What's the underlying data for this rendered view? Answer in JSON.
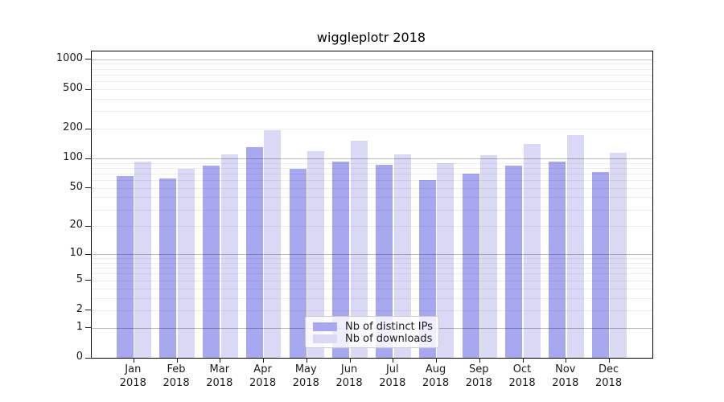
{
  "chart_data": {
    "type": "bar",
    "title": "wiggleplotr 2018",
    "xlabel": "",
    "ylabel": "",
    "y_scale": "log10(1+x)",
    "ylim": [
      0,
      1200
    ],
    "y_ticks": [
      1000,
      500,
      200,
      100,
      50,
      20,
      10,
      5,
      2,
      1,
      0
    ],
    "grid": {
      "major": [
        1,
        10,
        100,
        1000
      ],
      "minor": [
        2,
        3,
        4,
        5,
        6,
        7,
        8,
        9,
        20,
        30,
        40,
        50,
        60,
        70,
        80,
        90,
        200,
        300,
        400,
        500,
        600,
        700,
        800,
        900
      ]
    },
    "categories": [
      "Jan",
      "Feb",
      "Mar",
      "Apr",
      "May",
      "Jun",
      "Jul",
      "Aug",
      "Sep",
      "Oct",
      "Nov",
      "Dec"
    ],
    "x_tick_year_line": "2018",
    "series": [
      {
        "name": "Nb of distinct IPs",
        "color": "#a8a8f0",
        "values": [
          66,
          63,
          84,
          129,
          79,
          93,
          86,
          60,
          70,
          84,
          93,
          72
        ]
      },
      {
        "name": "Nb of downloads",
        "color": "#d9d9f6",
        "values": [
          92,
          79,
          110,
          192,
          119,
          151,
          109,
          90,
          108,
          140,
          172,
          115
        ]
      }
    ],
    "legend_position": "inside lower-center"
  },
  "colors": {
    "series_dark": "#a8a8f0",
    "series_light": "#d9d9f6",
    "spine": "#000000",
    "tick_text": "#1a1a1a",
    "legend_border": "#cccccc"
  }
}
